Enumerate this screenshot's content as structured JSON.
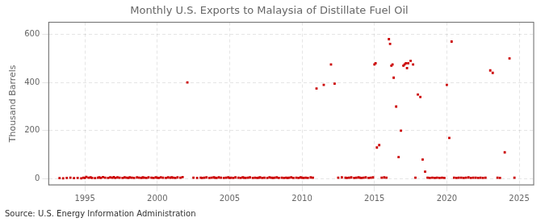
{
  "chart_data": {
    "type": "scatter",
    "title": "Monthly U.S. Exports to Malaysia of Distillate Fuel Oil",
    "ylabel": "Thousand Barrels",
    "annotation": "Source: U.S. Energy Information Administration",
    "color": "#cc0000",
    "marker": "square",
    "grid": true,
    "xlim": [
      1992.5,
      2026
    ],
    "ylim": [
      -25,
      650
    ],
    "xticks": [
      1995,
      2000,
      2005,
      2010,
      2015,
      2020,
      2025
    ],
    "yticks": [
      0,
      200,
      400,
      600
    ],
    "x": [
      1993.25,
      1993.5,
      1993.75,
      1994.0,
      1994.25,
      1994.5,
      1994.75,
      1994.9,
      1995.0,
      1995.1,
      1995.25,
      1995.4,
      1995.5,
      1995.7,
      1995.9,
      1996.0,
      1996.1,
      1996.25,
      1996.4,
      1996.6,
      1996.75,
      1996.9,
      1997.0,
      1997.1,
      1997.25,
      1997.4,
      1997.6,
      1997.75,
      1997.9,
      1998.0,
      1998.1,
      1998.25,
      1998.4,
      1998.6,
      1998.75,
      1998.9,
      1999.0,
      1999.1,
      1999.25,
      1999.4,
      1999.6,
      1999.75,
      1999.9,
      2000.0,
      2000.1,
      2000.25,
      2000.4,
      2000.6,
      2000.75,
      2000.9,
      2001.0,
      2001.1,
      2001.25,
      2001.4,
      2001.6,
      2001.75,
      2002.08,
      2002.5,
      2002.75,
      2003.0,
      2003.1,
      2003.25,
      2003.4,
      2003.6,
      2003.75,
      2003.9,
      2004.0,
      2004.1,
      2004.25,
      2004.4,
      2004.6,
      2004.75,
      2004.9,
      2005.0,
      2005.1,
      2005.25,
      2005.4,
      2005.6,
      2005.75,
      2005.9,
      2006.0,
      2006.1,
      2006.25,
      2006.4,
      2006.6,
      2006.75,
      2006.9,
      2007.0,
      2007.1,
      2007.25,
      2007.4,
      2007.6,
      2007.75,
      2007.9,
      2008.0,
      2008.1,
      2008.25,
      2008.4,
      2008.6,
      2008.75,
      2008.9,
      2009.0,
      2009.1,
      2009.25,
      2009.4,
      2009.6,
      2009.75,
      2009.9,
      2010.0,
      2010.1,
      2010.25,
      2010.4,
      2010.6,
      2010.75,
      2011.0,
      2011.5,
      2012.0,
      2012.25,
      2012.5,
      2012.75,
      2013.0,
      2013.1,
      2013.25,
      2013.4,
      2013.6,
      2013.75,
      2013.9,
      2014.0,
      2014.1,
      2014.25,
      2014.4,
      2014.6,
      2014.75,
      2014.9,
      2015.0,
      2015.08,
      2015.17,
      2015.33,
      2015.5,
      2015.67,
      2015.83,
      2016.0,
      2016.08,
      2016.17,
      2016.25,
      2016.33,
      2016.5,
      2016.67,
      2016.83,
      2017.0,
      2017.08,
      2017.17,
      2017.25,
      2017.33,
      2017.5,
      2017.67,
      2017.83,
      2018.0,
      2018.17,
      2018.33,
      2018.5,
      2018.67,
      2018.83,
      2019.0,
      2019.17,
      2019.33,
      2019.5,
      2019.67,
      2019.83,
      2020.0,
      2020.17,
      2020.33,
      2020.5,
      2020.67,
      2020.83,
      2021.0,
      2021.17,
      2021.33,
      2021.5,
      2021.67,
      2021.83,
      2022.0,
      2022.17,
      2022.33,
      2022.5,
      2022.67,
      2023.0,
      2023.17,
      2023.5,
      2023.67,
      2024.0,
      2024.33,
      2024.67
    ],
    "values": [
      3,
      2,
      4,
      5,
      3,
      4,
      2,
      5,
      4,
      8,
      5,
      6,
      4,
      3,
      5,
      6,
      4,
      7,
      5,
      4,
      6,
      5,
      7,
      4,
      6,
      5,
      4,
      6,
      5,
      4,
      6,
      5,
      4,
      6,
      5,
      4,
      6,
      5,
      4,
      6,
      5,
      4,
      6,
      5,
      4,
      6,
      5,
      4,
      6,
      5,
      6,
      5,
      4,
      6,
      5,
      7,
      400,
      5,
      4,
      5,
      4,
      5,
      6,
      4,
      5,
      6,
      5,
      4,
      6,
      5,
      4,
      5,
      6,
      4,
      5,
      4,
      6,
      5,
      4,
      6,
      5,
      4,
      5,
      6,
      4,
      5,
      4,
      5,
      6,
      4,
      5,
      4,
      6,
      5,
      4,
      5,
      6,
      4,
      5,
      4,
      5,
      4,
      5,
      6,
      4,
      5,
      4,
      6,
      5,
      4,
      5,
      4,
      6,
      5,
      375,
      390,
      475,
      395,
      5,
      6,
      5,
      4,
      5,
      6,
      4,
      5,
      6,
      5,
      4,
      5,
      6,
      4,
      5,
      6,
      475,
      480,
      130,
      140,
      5,
      6,
      5,
      580,
      560,
      470,
      475,
      420,
      300,
      90,
      200,
      470,
      475,
      480,
      460,
      480,
      490,
      475,
      5,
      350,
      340,
      80,
      30,
      5,
      4,
      5,
      4,
      5,
      4,
      5,
      4,
      390,
      170,
      570,
      5,
      4,
      5,
      5,
      4,
      5,
      6,
      4,
      5,
      5,
      4,
      5,
      4,
      5,
      450,
      440,
      5,
      4,
      110,
      500,
      5
    ]
  }
}
